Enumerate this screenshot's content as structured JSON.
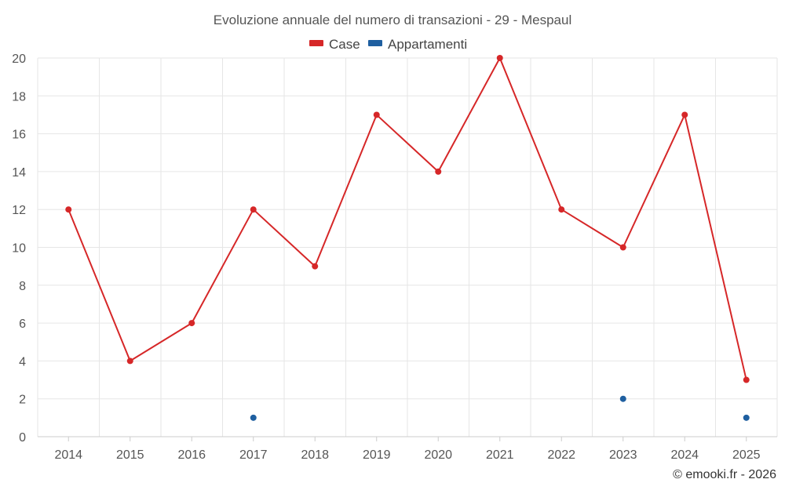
{
  "chart_data": {
    "type": "line",
    "title": "Evoluzione annuale del numero di transazioni - 29 - Mespaul",
    "categories": [
      "2014",
      "2015",
      "2016",
      "2017",
      "2018",
      "2019",
      "2020",
      "2021",
      "2022",
      "2023",
      "2024",
      "2025"
    ],
    "ylim": [
      0,
      20
    ],
    "yticks": [
      0,
      2,
      4,
      6,
      8,
      10,
      12,
      14,
      16,
      18,
      20
    ],
    "grid": true,
    "legend_position": "top-center",
    "series": [
      {
        "name": "Case",
        "color": "#d62728",
        "values": [
          12,
          4,
          6,
          12,
          9,
          17,
          14,
          20,
          12,
          10,
          17,
          3
        ]
      },
      {
        "name": "Appartamenti",
        "color": "#1f5fa0",
        "values": [
          null,
          null,
          null,
          1,
          null,
          null,
          null,
          null,
          null,
          2,
          null,
          1
        ]
      }
    ]
  },
  "credit": "© emooki.fr - 2026"
}
